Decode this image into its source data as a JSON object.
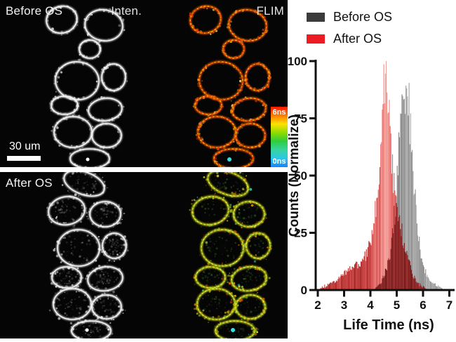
{
  "figure": {
    "before": {
      "label": "Before OS",
      "intensity_label": "Inten.",
      "flim_label": "FLIM",
      "scale_label": "30 um"
    },
    "after": {
      "label": "After OS"
    },
    "colorbar": {
      "top_label": "6ns",
      "bottom_label": "0ns",
      "min_ns": 0,
      "max_ns": 6,
      "gradient": [
        "#ff1500",
        "#ff7a00",
        "#ffe100",
        "#8fdc00",
        "#2ecc40",
        "#36d4a0",
        "#2ec5e8",
        "#1583ff"
      ]
    }
  },
  "chart": {
    "legend": [
      {
        "label": "Before OS",
        "color": "#3b3b3b"
      },
      {
        "label": "After OS",
        "color": "#ed1c24"
      }
    ],
    "xlabel": "Life Time (ns)",
    "ylabel": "Counts (Normalize)",
    "xticks": [
      2,
      3,
      4,
      5,
      6,
      7
    ],
    "yticks": [
      0,
      25,
      50,
      75,
      100
    ],
    "xlim": [
      2,
      7
    ],
    "ylim": [
      0,
      100
    ]
  },
  "chart_data": {
    "type": "histogram",
    "xlabel": "Life Time (ns)",
    "ylabel": "Counts (Normalize)",
    "xlim": [
      2,
      7
    ],
    "ylim": [
      0,
      100
    ],
    "x_ns": [
      2.0,
      2.1,
      2.2,
      2.3,
      2.4,
      2.5,
      2.6,
      2.7,
      2.8,
      2.9,
      3.0,
      3.1,
      3.2,
      3.3,
      3.4,
      3.5,
      3.6,
      3.7,
      3.8,
      3.9,
      4.0,
      4.1,
      4.2,
      4.3,
      4.4,
      4.5,
      4.6,
      4.7,
      4.8,
      4.9,
      5.0,
      5.1,
      5.2,
      5.3,
      5.4,
      5.5,
      5.6,
      5.7,
      5.8,
      5.9,
      6.0,
      6.1,
      6.2,
      6.3,
      6.4,
      6.5,
      6.6,
      6.7,
      6.8,
      6.9,
      7.0
    ],
    "series": [
      {
        "name": "Before OS",
        "color": "#8f8f8f",
        "peak_ns": 5.35,
        "peak_value": 95,
        "values": [
          0,
          0,
          0,
          0,
          0,
          0,
          0,
          0,
          0,
          0,
          0,
          0,
          0,
          0,
          0,
          0,
          0,
          0,
          0,
          0,
          0,
          0,
          1,
          2,
          3,
          6,
          9,
          13,
          20,
          28,
          45,
          68,
          88,
          93,
          90,
          72,
          52,
          38,
          26,
          17,
          11,
          8,
          5,
          4,
          3,
          2,
          1.5,
          1,
          0,
          0,
          0
        ]
      },
      {
        "name": "After OS",
        "color": "#f07f7c",
        "overlap_color": "#8a1f1f",
        "peak_ns": 4.55,
        "peak_value": 100,
        "values": [
          0,
          0.5,
          1,
          1.5,
          2,
          3,
          3.5,
          4,
          5,
          6,
          7,
          8,
          9,
          10,
          10,
          11,
          12,
          13,
          15,
          17,
          21,
          26,
          31,
          41,
          65,
          98,
          94,
          75,
          59,
          45,
          38,
          31,
          25,
          20,
          15,
          11,
          7,
          5,
          3,
          2,
          1,
          0.5,
          0,
          0,
          0,
          0,
          0,
          0,
          0,
          0,
          0
        ]
      }
    ],
    "legend_position": "top-right-outside",
    "grid": false
  }
}
